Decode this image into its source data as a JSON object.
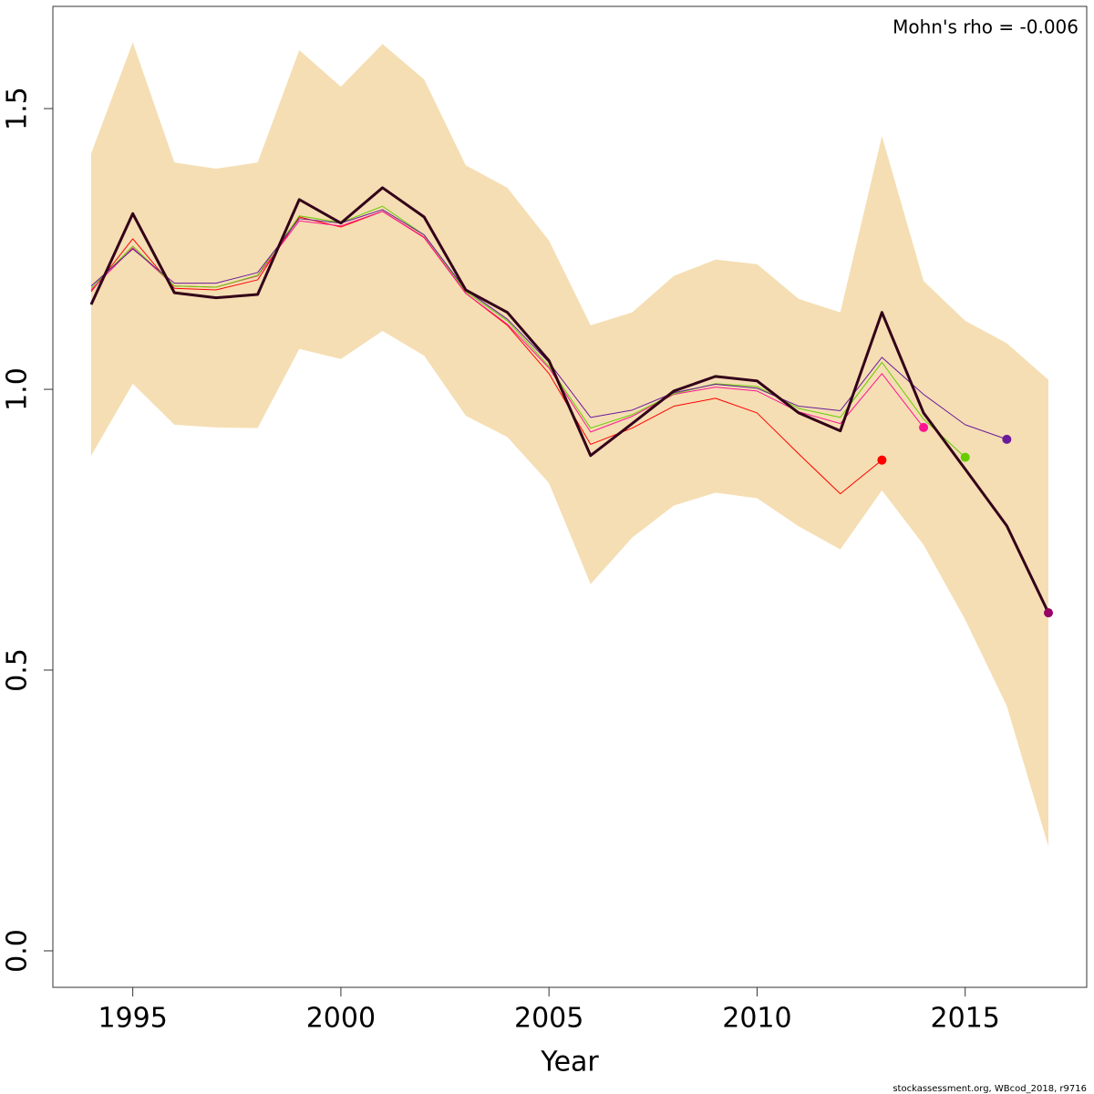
{
  "chart_data": {
    "type": "line",
    "annotation": "Mohn's rho = -0.006",
    "xlabel": "Year",
    "footer": "stockassessment.org, WBcod_2018, r9716",
    "x": [
      1994,
      1995,
      1996,
      1997,
      1998,
      1999,
      2000,
      2001,
      2002,
      2003,
      2004,
      2005,
      2006,
      2007,
      2008,
      2009,
      2010,
      2011,
      2012,
      2013,
      2014,
      2015,
      2016,
      2017
    ],
    "band": {
      "color": "#f5deb3",
      "upper": [
        1.42,
        1.618,
        1.404,
        1.393,
        1.404,
        1.604,
        1.539,
        1.615,
        1.552,
        1.399,
        1.359,
        1.265,
        1.114,
        1.137,
        1.202,
        1.231,
        1.223,
        1.161,
        1.137,
        1.451,
        1.193,
        1.122,
        1.082,
        1.017
      ],
      "lower": [
        0.882,
        1.01,
        0.937,
        0.932,
        0.931,
        1.072,
        1.054,
        1.104,
        1.06,
        0.953,
        0.915,
        0.833,
        0.653,
        0.736,
        0.793,
        0.816,
        0.806,
        0.756,
        0.715,
        0.82,
        0.723,
        0.59,
        0.436,
        0.186
      ]
    },
    "series": [
      {
        "color": "#ff0000",
        "width": 1,
        "values": [
          1.174,
          1.268,
          1.18,
          1.177,
          1.195,
          1.307,
          1.289,
          1.317,
          1.271,
          1.171,
          1.114,
          1.028,
          0.902,
          0.931,
          0.97,
          0.984,
          0.958,
          0.885,
          0.814,
          0.874,
          null,
          null,
          null,
          null
        ]
      },
      {
        "color": "#ff1493",
        "width": 1,
        "values": [
          1.177,
          1.252,
          1.184,
          1.182,
          1.202,
          1.3,
          1.291,
          1.317,
          1.27,
          1.171,
          1.116,
          1.038,
          0.924,
          0.952,
          0.991,
          1.004,
          0.997,
          0.96,
          0.939,
          1.028,
          0.932,
          null,
          null,
          null
        ]
      },
      {
        "color": "#66cc00",
        "width": 1,
        "values": [
          1.18,
          1.255,
          1.184,
          1.182,
          1.203,
          1.309,
          1.297,
          1.326,
          1.275,
          1.174,
          1.122,
          1.041,
          0.931,
          0.955,
          0.992,
          1.01,
          1.005,
          0.966,
          0.95,
          1.048,
          0.947,
          0.879,
          null,
          null
        ]
      },
      {
        "color": "#6a1b9a",
        "width": 1,
        "values": [
          1.184,
          1.25,
          1.189,
          1.189,
          1.208,
          1.304,
          1.296,
          1.32,
          1.275,
          1.177,
          1.125,
          1.048,
          0.95,
          0.963,
          0.994,
          1.009,
          1.002,
          0.97,
          0.962,
          1.057,
          0.991,
          0.937,
          0.911,
          null
        ]
      },
      {
        "color": "#330019",
        "width": 3,
        "dot_color": "#990066",
        "values": [
          1.151,
          1.313,
          1.172,
          1.163,
          1.169,
          1.338,
          1.296,
          1.359,
          1.307,
          1.177,
          1.137,
          1.051,
          0.882,
          0.939,
          0.997,
          1.023,
          1.015,
          0.958,
          0.926,
          1.137,
          0.958,
          0.858,
          0.757,
          0.602
        ]
      }
    ],
    "xlim": [
      1993.08,
      2017.92
    ],
    "ylim": [
      -0.065,
      1.682
    ],
    "xticks": [
      1995,
      2000,
      2005,
      2010,
      2015
    ],
    "yticks": [
      {
        "value": 0,
        "label": "0.0"
      },
      0.5,
      {
        "value": 1,
        "label": "1.0"
      },
      1.5
    ]
  }
}
